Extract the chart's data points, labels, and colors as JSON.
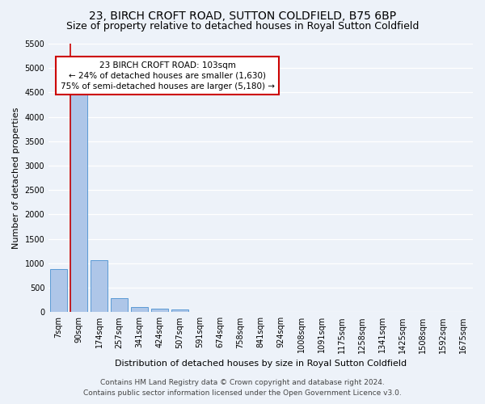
{
  "title": "23, BIRCH CROFT ROAD, SUTTON COLDFIELD, B75 6BP",
  "subtitle": "Size of property relative to detached houses in Royal Sutton Coldfield",
  "xlabel": "Distribution of detached houses by size in Royal Sutton Coldfield",
  "ylabel": "Number of detached properties",
  "footer_line1": "Contains HM Land Registry data © Crown copyright and database right 2024.",
  "footer_line2": "Contains public sector information licensed under the Open Government Licence v3.0.",
  "annotation_title": "23 BIRCH CROFT ROAD: 103sqm",
  "annotation_line1": "← 24% of detached houses are smaller (1,630)",
  "annotation_line2": "75% of semi-detached houses are larger (5,180) →",
  "property_size": 103,
  "bar_categories": [
    "7sqm",
    "90sqm",
    "174sqm",
    "257sqm",
    "341sqm",
    "424sqm",
    "507sqm",
    "591sqm",
    "674sqm",
    "758sqm",
    "841sqm",
    "924sqm",
    "1008sqm",
    "1091sqm",
    "1175sqm",
    "1258sqm",
    "1341sqm",
    "1425sqm",
    "1508sqm",
    "1592sqm",
    "1675sqm"
  ],
  "bar_values": [
    880,
    4570,
    1060,
    290,
    100,
    70,
    50,
    0,
    0,
    0,
    0,
    0,
    0,
    0,
    0,
    0,
    0,
    0,
    0,
    0,
    0
  ],
  "bar_color": "#aec6e8",
  "bar_edge_color": "#5b9bd5",
  "property_line_color": "#cc0000",
  "annotation_box_color": "#cc0000",
  "background_color": "#edf2f9",
  "plot_bg_color": "#edf2f9",
  "ylim": [
    0,
    5500
  ],
  "yticks": [
    0,
    500,
    1000,
    1500,
    2000,
    2500,
    3000,
    3500,
    4000,
    4500,
    5000,
    5500
  ],
  "grid_color": "#ffffff",
  "title_fontsize": 10,
  "subtitle_fontsize": 9,
  "ylabel_fontsize": 8,
  "xlabel_fontsize": 8,
  "tick_fontsize": 7,
  "annotation_fontsize": 7.5,
  "footer_fontsize": 6.5
}
